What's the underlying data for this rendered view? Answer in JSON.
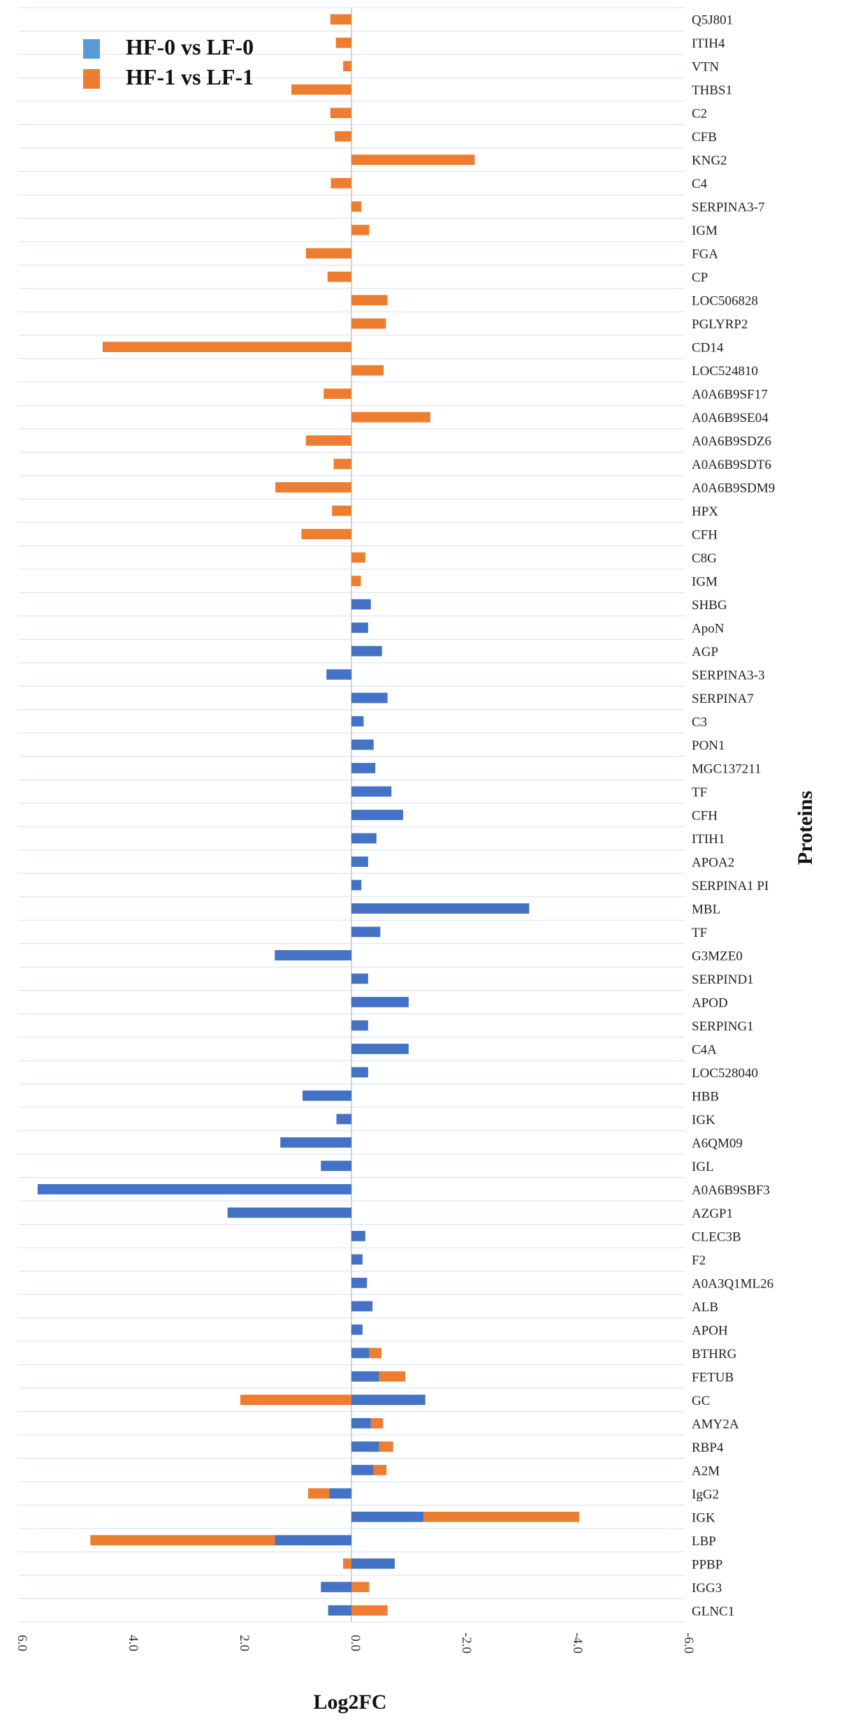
{
  "chart_data": {
    "type": "bar",
    "orientation": "horizontal",
    "stacked": true,
    "xlabel": "Log2FC",
    "ylabel": "Proteins",
    "xlim": [
      6.0,
      -6.0
    ],
    "x_reversed": true,
    "xticks": [
      "6.0",
      "4.0",
      "2.0",
      "0.0",
      "-2.0",
      "-4.0",
      "-6.0"
    ],
    "grid": "horizontal",
    "legend_position": "top-left",
    "categories": [
      "Q5J801",
      "ITIH4",
      "VTN",
      "THBS1",
      "C2",
      "CFB",
      "KNG2",
      "C4",
      "SERPINA3-7",
      "IGM",
      "FGA",
      "CP",
      "LOC506828",
      "PGLYRP2",
      "CD14",
      "LOC524810",
      "A0A6B9SF17",
      "A0A6B9SE04",
      "A0A6B9SDZ6",
      "A0A6B9SDT6",
      "A0A6B9SDM9",
      "HPX",
      "CFH",
      "C8G",
      "IGM",
      "SHBG",
      "ApoN",
      "AGP",
      "SERPINA3-3",
      "SERPINA7",
      "C3",
      "PON1",
      "MGC137211",
      "TF",
      "CFH",
      "ITIH1",
      "APOA2",
      "SERPINA1 PI",
      "MBL",
      "TF",
      "G3MZE0",
      "SERPIND1",
      "APOD",
      "SERPING1",
      "C4A",
      "LOC528040",
      "HBB",
      "IGK",
      "A6QM09",
      "IGL",
      "A0A6B9SBF3",
      "AZGP1",
      "CLEC3B",
      "F2",
      "A0A3Q1ML26",
      "ALB",
      "APOH",
      "BTHRG",
      "FETUB",
      "GC",
      "AMY2A",
      "RBP4",
      "A2M",
      "IgG2",
      "IGK",
      "LBP",
      "PPBP",
      "IGG3",
      "GLNC1"
    ],
    "series": [
      {
        "name": "HF-0 vs LF-0",
        "color": "#4472C4",
        "legend_color": "#5B9BD5",
        "values": [
          0,
          0,
          0,
          0,
          0,
          0,
          0,
          0,
          0,
          0,
          0,
          0,
          0,
          0,
          0,
          0,
          0,
          0,
          0,
          0,
          0,
          0,
          0,
          0,
          0,
          -0.35,
          -0.3,
          -0.55,
          0.45,
          -0.65,
          -0.22,
          -0.4,
          -0.43,
          -0.72,
          -0.93,
          -0.45,
          -0.3,
          -0.18,
          -3.2,
          -0.52,
          1.38,
          -0.3,
          -1.03,
          -0.3,
          -1.03,
          -0.3,
          0.88,
          0.27,
          1.28,
          0.55,
          5.65,
          2.23,
          -0.25,
          -0.2,
          -0.28,
          -0.38,
          -0.2,
          -0.32,
          -0.5,
          -1.33,
          -0.35,
          -0.5,
          -0.4,
          0.4,
          -1.3,
          1.38,
          -0.78,
          0.55,
          0.42
        ]
      },
      {
        "name": "HF-1 vs LF-1",
        "color": "#ED7D31",
        "legend_color": "#ED7D31",
        "values": [
          0.38,
          0.28,
          0.15,
          1.08,
          0.38,
          0.3,
          -2.22,
          0.37,
          -0.18,
          -0.32,
          0.82,
          0.43,
          -0.65,
          -0.62,
          4.48,
          -0.58,
          0.5,
          -1.42,
          0.82,
          0.32,
          1.37,
          0.35,
          0.9,
          -0.25,
          -0.17,
          0,
          0,
          0,
          0,
          0,
          0,
          0,
          0,
          0,
          0,
          0,
          0,
          0,
          0,
          0,
          0,
          0,
          0,
          0,
          0,
          0,
          0,
          0,
          0,
          0,
          0,
          0,
          0,
          0,
          0,
          0,
          0,
          -0.22,
          -0.47,
          2.0,
          -0.22,
          -0.25,
          -0.23,
          0.38,
          -2.8,
          3.32,
          0.15,
          -0.32,
          -0.65
        ]
      }
    ]
  }
}
